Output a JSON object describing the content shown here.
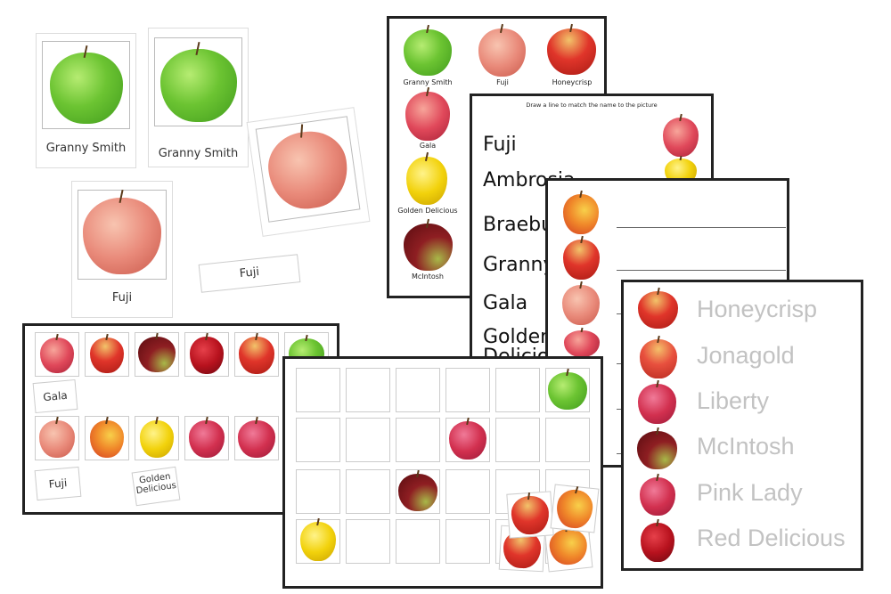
{
  "cards": {
    "granny_smith_1": "Granny Smith",
    "granny_smith_2": "Granny Smith",
    "fuji_card": "Fuji",
    "fuji_label": "Fuji"
  },
  "reference_sheet": {
    "items": [
      "Granny Smith",
      "Fuji",
      "Honeycrisp",
      "Gala",
      "Golden Delicious",
      "McIntosh"
    ]
  },
  "match_sheet": {
    "instruction": "Draw a line to match the name to the picture",
    "names": [
      "Fuji",
      "Ambrosia",
      "Braeburn",
      "Granny",
      "Gala",
      "Golden",
      "Delicious"
    ]
  },
  "trace_sheet": {
    "names": [
      "Honeycrisp",
      "Jonagold",
      "Liberty",
      "McIntosh",
      "Pink Lady",
      "Red Delicious"
    ]
  },
  "sort_sheet": {
    "labels": [
      "Gala",
      "Fuji",
      "Golden Delicious"
    ]
  },
  "colors": {
    "green": "#6cc432",
    "red": "#c7162a",
    "yellow": "#f2d20c",
    "border": "#222222"
  }
}
